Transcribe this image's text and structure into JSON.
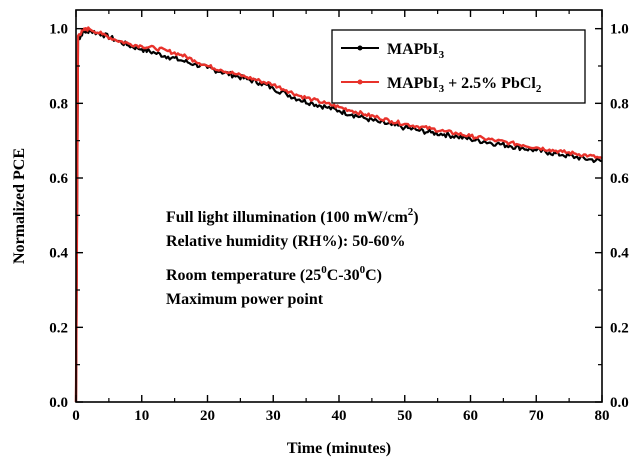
{
  "chart_data": {
    "type": "line",
    "xlabel": "Time (minutes)",
    "ylabel": "Normalized PCE",
    "xlim": [
      0,
      80
    ],
    "ylim": [
      0.0,
      1.05
    ],
    "x_ticks": [
      "0",
      "10",
      "20",
      "30",
      "40",
      "50",
      "60",
      "70",
      "80"
    ],
    "y_ticks": [
      "0.0",
      "0.2",
      "0.4",
      "0.6",
      "0.8",
      "1.0"
    ],
    "y_ticks_right": [
      "0.0",
      "0.2",
      "0.4",
      "0.6",
      "0.8",
      "1.0"
    ],
    "grid": false,
    "legend_position": "top-right",
    "series": [
      {
        "name": "MAPbI3",
        "name_parts": {
          "base": "MAPbI",
          "sub": "3"
        },
        "color": "#000000",
        "x": [
          0,
          0.3,
          1,
          2,
          4,
          6,
          8,
          10,
          12,
          14,
          16,
          18,
          20,
          22,
          24,
          26,
          28,
          30,
          32,
          34,
          36,
          38,
          40,
          42,
          44,
          46,
          48,
          50,
          52,
          54,
          56,
          58,
          60,
          62,
          64,
          66,
          68,
          70,
          72,
          74,
          76,
          78,
          80
        ],
        "y": [
          0.0,
          0.97,
          0.99,
          0.995,
          0.985,
          0.97,
          0.955,
          0.945,
          0.935,
          0.925,
          0.915,
          0.905,
          0.895,
          0.885,
          0.875,
          0.865,
          0.855,
          0.84,
          0.825,
          0.81,
          0.8,
          0.79,
          0.78,
          0.77,
          0.76,
          0.75,
          0.742,
          0.735,
          0.728,
          0.722,
          0.717,
          0.711,
          0.704,
          0.698,
          0.692,
          0.686,
          0.68,
          0.674,
          0.668,
          0.662,
          0.656,
          0.65,
          0.645
        ]
      },
      {
        "name": "MAPbI3 + 2.5% PbCl2",
        "name_parts": {
          "base": "MAPbI",
          "sub1": "3",
          "mid": " + 2.5% PbCl",
          "sub2": "2"
        },
        "color": "#e8322b",
        "x": [
          0,
          0.3,
          1,
          2,
          4,
          6,
          8,
          10,
          12,
          14,
          16,
          18,
          20,
          22,
          24,
          26,
          28,
          30,
          32,
          34,
          36,
          38,
          40,
          42,
          44,
          46,
          48,
          50,
          52,
          54,
          56,
          58,
          60,
          62,
          64,
          66,
          68,
          70,
          72,
          74,
          76,
          78,
          80
        ],
        "y": [
          0.0,
          0.98,
          0.995,
          1.0,
          0.985,
          0.97,
          0.96,
          0.953,
          0.948,
          0.94,
          0.93,
          0.915,
          0.9,
          0.89,
          0.88,
          0.87,
          0.86,
          0.85,
          0.835,
          0.82,
          0.81,
          0.8,
          0.79,
          0.78,
          0.77,
          0.762,
          0.752,
          0.745,
          0.738,
          0.732,
          0.725,
          0.719,
          0.712,
          0.706,
          0.7,
          0.694,
          0.688,
          0.682,
          0.676,
          0.67,
          0.665,
          0.66,
          0.652
        ]
      }
    ],
    "annotations": {
      "line1": {
        "text": "Full light illumination (100 mW/cm",
        "sup": "2",
        "tail": ")"
      },
      "line2": {
        "text": "Relative humidity (RH%): 50-60%"
      },
      "line3": {
        "a": "Room temperature (25",
        "sup1": "0",
        "b": "C-30",
        "sup2": "0",
        "c": "C)"
      },
      "line4": {
        "text": "Maximum power point"
      }
    }
  }
}
